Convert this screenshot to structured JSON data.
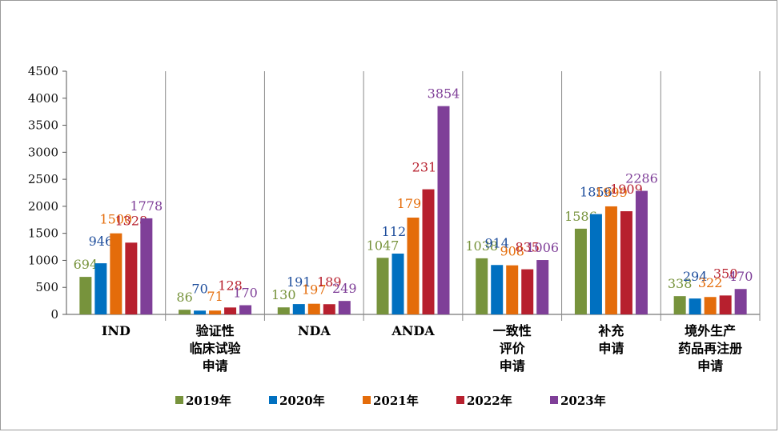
{
  "chart_data": {
    "type": "bar",
    "title": "",
    "xlabel": "",
    "ylabel": "",
    "ylim": [
      0,
      4500
    ],
    "yticks": [
      0,
      500,
      1000,
      1500,
      2000,
      2500,
      3000,
      3500,
      4000,
      4500
    ],
    "grid": false,
    "legend_position": "bottom",
    "categories": [
      [
        "IND"
      ],
      [
        "验证性",
        "临床试验",
        "申请"
      ],
      [
        "NDA"
      ],
      [
        "ANDA"
      ],
      [
        "一致性",
        "评价",
        "申请"
      ],
      [
        "补充",
        "申请"
      ],
      [
        "境外生产",
        "药品再注册",
        "申请"
      ]
    ],
    "series": [
      {
        "name": "2019年",
        "color": "#77933c",
        "values": [
          694,
          86,
          130,
          1047,
          1038,
          1586,
          338
        ]
      },
      {
        "name": "2020年",
        "color": "#0070c0",
        "values": [
          946,
          70,
          191,
          1125,
          914,
          1856,
          294
        ]
      },
      {
        "name": "2021年",
        "color": "#e46c0a",
        "values": [
          1500,
          71,
          197,
          1791,
          908,
          1999,
          322
        ]
      },
      {
        "name": "2022年",
        "color": "#b7202e",
        "values": [
          1328,
          128,
          189,
          2315,
          835,
          1909,
          350
        ]
      },
      {
        "name": "2023年",
        "color": "#7f3f98",
        "values": [
          1778,
          170,
          249,
          3854,
          1006,
          2286,
          470
        ]
      }
    ],
    "label_colors": [
      "#77933c",
      "#1f4e9c",
      "#e46c0a",
      "#b7202e",
      "#7f3f98"
    ]
  }
}
